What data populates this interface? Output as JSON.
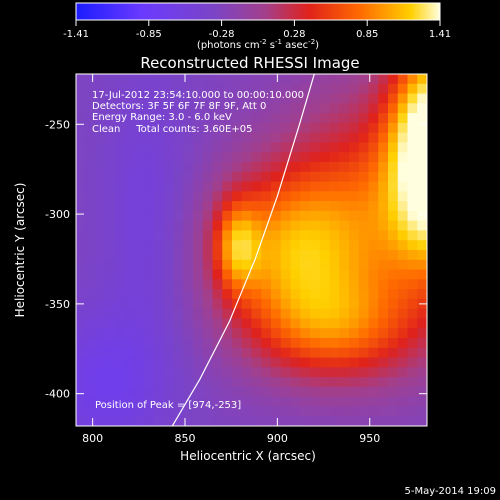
{
  "colorbar": {
    "ticks": [
      "-1.41",
      "-0.85",
      "-0.28",
      "0.28",
      "0.85",
      "1.41"
    ],
    "unit_parts": [
      "(photons cm",
      "-2",
      " s",
      "-1",
      " asec",
      "-2",
      ")"
    ],
    "colors": [
      "#1b1cff",
      "#6a3aff",
      "#7b44c6",
      "#a33f8b",
      "#e0221b",
      "#ff6a00",
      "#ffd000",
      "#ffffe0"
    ]
  },
  "chart_data": {
    "type": "heatmap",
    "title": "Reconstructed RHESSI Image",
    "xlabel": "Heliocentric X (arcsec)",
    "ylabel": "Heliocentric Y (arcsec)",
    "xlim": [
      791,
      981
    ],
    "ylim": [
      -418,
      -222
    ],
    "xticks": [
      800,
      850,
      900,
      950
    ],
    "yticks": [
      -250,
      -300,
      -350,
      -400
    ],
    "info_lines": [
      "17-Jul-2012 23:54:10.000 to 00:00:10.000",
      "Detectors: 3F 5F 6F 7F 8F 9F, Att 0",
      "Energy Range: 3.0 - 6.0 keV",
      "Clean     Total counts: 3.60E+05"
    ],
    "peak_label": "Position of Peak = [974,-253]",
    "peak": [
      974,
      -253
    ],
    "limb_line": [
      [
        842,
        -420
      ],
      [
        858,
        -392
      ],
      [
        874,
        -360
      ],
      [
        888,
        -325
      ],
      [
        900,
        -290
      ],
      [
        912,
        -250
      ],
      [
        920,
        -222
      ]
    ]
  },
  "footer": {
    "date": "5-May-2014 19:09"
  }
}
